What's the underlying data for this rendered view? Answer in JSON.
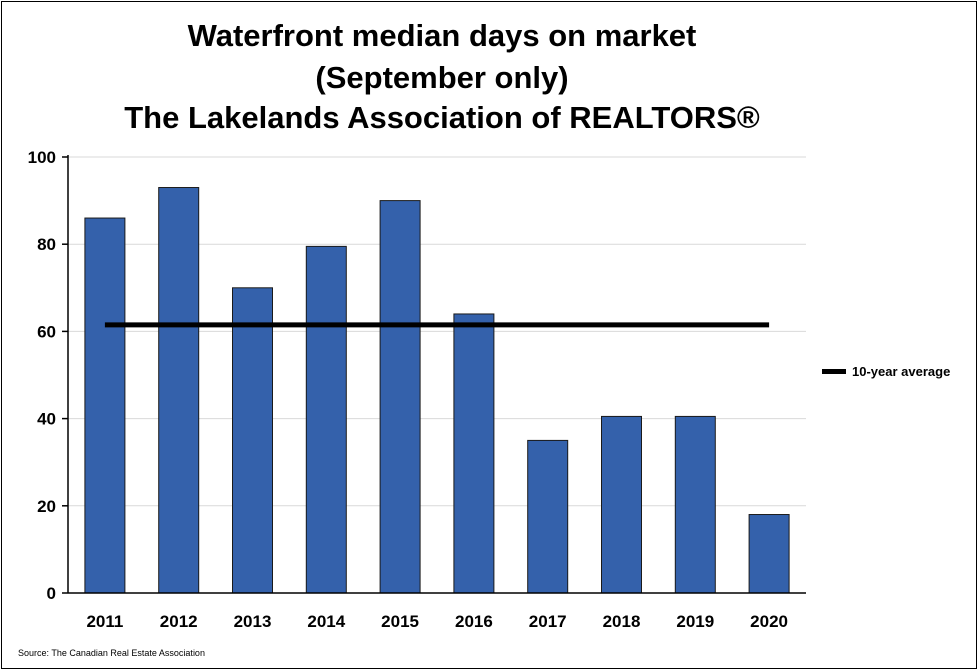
{
  "chart_data": {
    "type": "bar",
    "title_lines": [
      "Waterfront median days on market",
      "(September only)",
      "The Lakelands Association of REALTORS®"
    ],
    "categories": [
      "2011",
      "2012",
      "2013",
      "2014",
      "2015",
      "2016",
      "2017",
      "2018",
      "2019",
      "2020"
    ],
    "series": [
      {
        "values": [
          86,
          93,
          70,
          79.5,
          90,
          64,
          35,
          40.5,
          40.5,
          18
        ],
        "color": "#3461ab"
      }
    ],
    "reference_line": {
      "name": "10-year average",
      "value": 61.5,
      "color": "#000000"
    },
    "ylim": [
      0,
      100
    ],
    "yticks": [
      0,
      20,
      40,
      60,
      80,
      100
    ],
    "grid": true,
    "legend_position": "right",
    "source": "Source: The Canadian Real Estate Association"
  }
}
